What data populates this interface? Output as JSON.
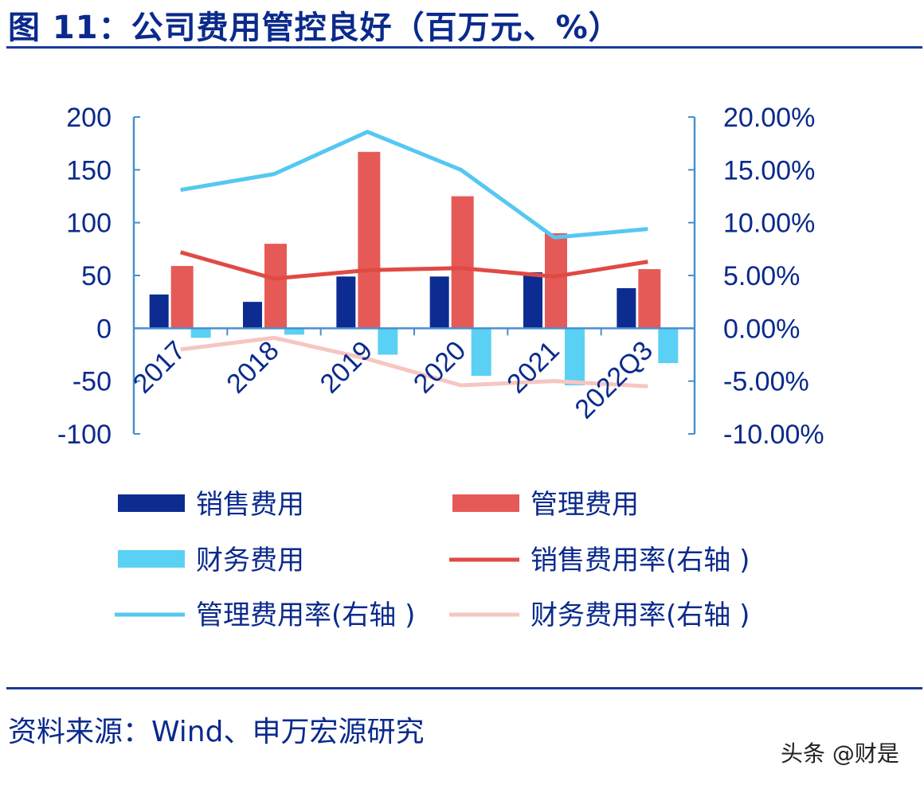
{
  "title": "图 11：公司费用管控良好（百万元、%）",
  "source": "资料来源：Wind、申万宏源研究",
  "watermark": "头条 @财是",
  "chart_data": {
    "type": "bar+line",
    "categories": [
      "2017",
      "2018",
      "2019",
      "2020",
      "2021",
      "2022Q3"
    ],
    "left_axis": {
      "ylim": [
        -100,
        200
      ],
      "ticks": [
        "200",
        "150",
        "100",
        "50",
        "0",
        "-50",
        "-100"
      ]
    },
    "right_axis": {
      "ylim": [
        -10,
        20
      ],
      "ticks": [
        "20.00%",
        "15.00%",
        "10.00%",
        "5.00%",
        "0.00%",
        "-5.00%",
        "-10.00%"
      ]
    },
    "series": [
      {
        "name": "销售费用",
        "type": "bar",
        "axis": "left",
        "color": "#0d2c91",
        "values": [
          32,
          25,
          49,
          49,
          53,
          38
        ]
      },
      {
        "name": "管理费用",
        "type": "bar",
        "axis": "left",
        "color": "#e55a57",
        "values": [
          59,
          80,
          167,
          125,
          90,
          56
        ]
      },
      {
        "name": "财务费用",
        "type": "bar",
        "axis": "left",
        "color": "#5bd0f5",
        "values": [
          -9,
          -6,
          -25,
          -45,
          -54,
          -33
        ]
      },
      {
        "name": "销售费用率(右轴 )",
        "type": "line",
        "axis": "right",
        "color": "#e04a44",
        "values": [
          7.2,
          4.7,
          5.5,
          5.7,
          4.9,
          6.3
        ]
      },
      {
        "name": "管理费用率(右轴 )",
        "type": "line",
        "axis": "right",
        "color": "#55c8f2",
        "values": [
          13.1,
          14.6,
          18.6,
          15.0,
          8.6,
          9.4
        ]
      },
      {
        "name": "财务费用率(右轴 )",
        "type": "line",
        "axis": "right",
        "color": "#f6c6c0",
        "values": [
          -2.0,
          -0.9,
          -2.9,
          -5.4,
          -5.0,
          -5.5
        ]
      }
    ],
    "legend_placement": "bottom",
    "grid": false
  }
}
